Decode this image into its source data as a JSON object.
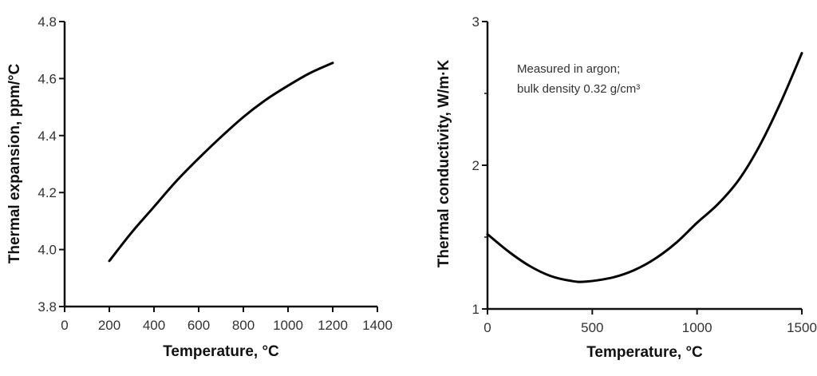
{
  "chart_data": [
    {
      "type": "line",
      "xlabel": "Temperature, °C",
      "ylabel": "Thermal expansion, ppm/°C",
      "xlim": [
        0,
        1400
      ],
      "ylim": [
        3.8,
        4.8
      ],
      "xticks": [
        0,
        200,
        400,
        600,
        800,
        1000,
        1200,
        1400
      ],
      "yticks": [
        3.8,
        4.0,
        4.2,
        4.4,
        4.6,
        4.8
      ],
      "ytick_labels": [
        "3.8",
        "4.0",
        "4.2",
        "4.4",
        "4.6",
        "4.8"
      ],
      "grid": false,
      "line_color": "#000000",
      "series": [
        {
          "x": [
            200,
            300,
            400,
            500,
            600,
            700,
            800,
            900,
            1000,
            1100,
            1200
          ],
          "y": [
            3.96,
            4.06,
            4.15,
            4.24,
            4.32,
            4.395,
            4.465,
            4.525,
            4.575,
            4.62,
            4.655
          ]
        }
      ]
    },
    {
      "type": "line",
      "xlabel": "Temperature, °C",
      "ylabel": "Thermal conductivity, W/m·K",
      "xlim": [
        0,
        1500
      ],
      "ylim": [
        1,
        3
      ],
      "xticks": [
        0,
        500,
        1000,
        1500
      ],
      "yticks": [
        1,
        2,
        3
      ],
      "ytick_labels": [
        "1",
        "2",
        "3"
      ],
      "grid": false,
      "line_color": "#000000",
      "annotation": [
        "Measured in argon;",
        "bulk density 0.32 g/cm³"
      ],
      "series": [
        {
          "x": [
            0,
            100,
            200,
            300,
            400,
            470,
            600,
            700,
            800,
            900,
            1000,
            1100,
            1200,
            1300,
            1400,
            1500
          ],
          "y": [
            1.52,
            1.4,
            1.3,
            1.23,
            1.195,
            1.19,
            1.22,
            1.27,
            1.35,
            1.46,
            1.6,
            1.73,
            1.9,
            2.14,
            2.44,
            2.78
          ]
        }
      ]
    }
  ]
}
